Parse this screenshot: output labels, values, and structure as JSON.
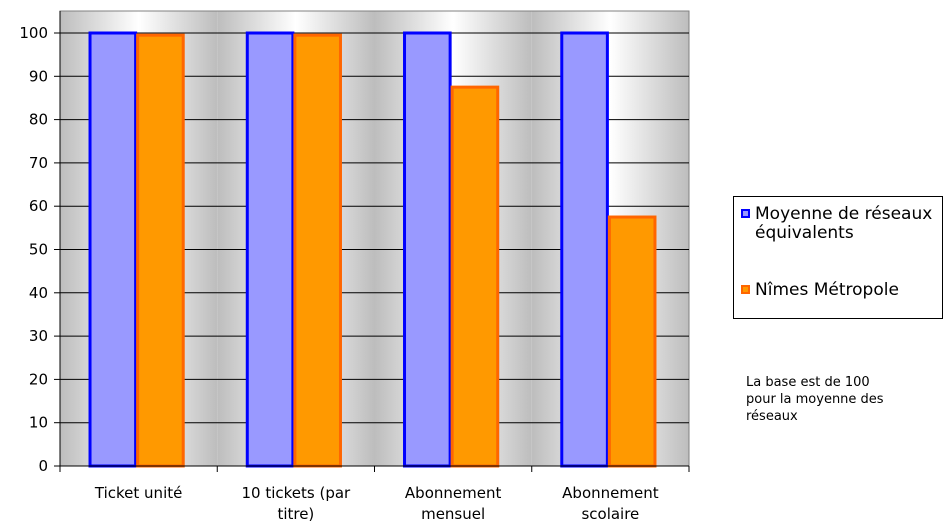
{
  "chart_data": {
    "type": "bar",
    "categories": [
      "Ticket unité",
      "10 tickets (par titre)",
      "Abonnement mensuel",
      "Abonnement scolaire"
    ],
    "category_lines": [
      [
        "Ticket unité"
      ],
      [
        "10 tickets (par",
        "titre)"
      ],
      [
        "Abonnement",
        "mensuel"
      ],
      [
        "Abonnement",
        "scolaire"
      ]
    ],
    "series": [
      {
        "name": "Moyenne de réseaux équivalents",
        "values": [
          100,
          100,
          100,
          100
        ],
        "fill": "#9999ff",
        "stroke": "#0000ff"
      },
      {
        "name": "Nîmes Métropole",
        "values": [
          99.5,
          99.5,
          87.5,
          57.5
        ],
        "fill": "#ff9900",
        "stroke": "#ff6600"
      }
    ],
    "ylim": [
      0,
      100
    ],
    "yticks": [
      0,
      10,
      20,
      30,
      40,
      50,
      60,
      70,
      80,
      90,
      100
    ],
    "grid": true,
    "legend_position": "right",
    "xlabel": "",
    "ylabel": "",
    "title": ""
  },
  "legend": {
    "items": [
      {
        "label": "Moyenne de réseaux équivalents"
      },
      {
        "label": "Nîmes Métropole"
      }
    ]
  },
  "note": {
    "text": "La base est de 100 pour la moyenne des réseaux"
  }
}
